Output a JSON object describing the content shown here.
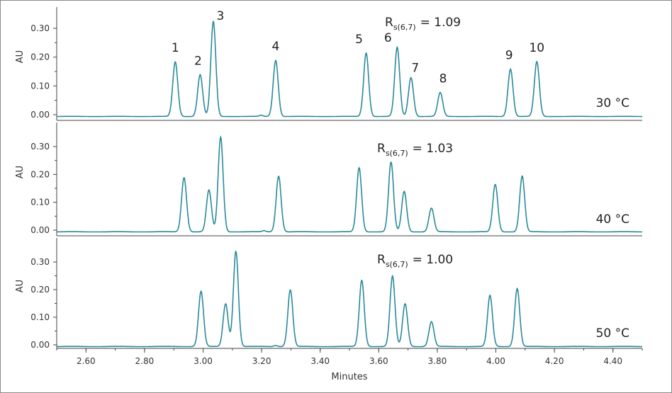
{
  "chart_data": {
    "type": "line",
    "xlabel": "Minutes",
    "ylabel": "AU",
    "xlim": [
      2.5,
      4.5
    ],
    "x_ticks": [
      "2.60",
      "2.80",
      "3.00",
      "3.20",
      "3.40",
      "3.60",
      "3.80",
      "4.00",
      "4.20",
      "4.40"
    ],
    "y_ticks": [
      "0.00",
      "0.10",
      "0.20",
      "0.30"
    ],
    "ylim": [
      -0.02,
      0.34
    ],
    "series_color": "#2a8a9a",
    "panels": [
      {
        "temperature": "30 °C",
        "rs_prefix": "R",
        "rs_sub": "s(6,7)",
        "rs_value": "= 1.09",
        "peak_labels": [
          "1",
          "2",
          "3",
          "4",
          "5",
          "6",
          "7",
          "8",
          "9",
          "10"
        ],
        "peaks": [
          {
            "t": 2.905,
            "h": 0.19
          },
          {
            "t": 2.99,
            "h": 0.145
          },
          {
            "t": 3.035,
            "h": 0.33
          },
          {
            "t": 3.248,
            "h": 0.195
          },
          {
            "t": 3.557,
            "h": 0.22
          },
          {
            "t": 3.663,
            "h": 0.24
          },
          {
            "t": 3.71,
            "h": 0.135
          },
          {
            "t": 3.81,
            "h": 0.083
          },
          {
            "t": 4.05,
            "h": 0.165
          },
          {
            "t": 4.14,
            "h": 0.19
          }
        ]
      },
      {
        "temperature": "40 °C",
        "rs_prefix": "R",
        "rs_sub": "s(6,7)",
        "rs_value": "= 1.03",
        "peaks": [
          {
            "t": 2.935,
            "h": 0.195
          },
          {
            "t": 3.02,
            "h": 0.15
          },
          {
            "t": 3.06,
            "h": 0.34
          },
          {
            "t": 3.258,
            "h": 0.2
          },
          {
            "t": 3.533,
            "h": 0.23
          },
          {
            "t": 3.642,
            "h": 0.25
          },
          {
            "t": 3.687,
            "h": 0.145
          },
          {
            "t": 3.78,
            "h": 0.085
          },
          {
            "t": 3.998,
            "h": 0.17
          },
          {
            "t": 4.09,
            "h": 0.2
          }
        ]
      },
      {
        "temperature": "50 °C",
        "rs_prefix": "R",
        "rs_sub": "s(6,7)",
        "rs_value": "= 1.00",
        "peaks": [
          {
            "t": 2.993,
            "h": 0.2
          },
          {
            "t": 3.077,
            "h": 0.155
          },
          {
            "t": 3.112,
            "h": 0.345
          },
          {
            "t": 3.298,
            "h": 0.205
          },
          {
            "t": 3.542,
            "h": 0.24
          },
          {
            "t": 3.647,
            "h": 0.255
          },
          {
            "t": 3.69,
            "h": 0.155
          },
          {
            "t": 3.78,
            "h": 0.09
          },
          {
            "t": 3.98,
            "h": 0.185
          },
          {
            "t": 4.073,
            "h": 0.21
          }
        ]
      }
    ]
  }
}
